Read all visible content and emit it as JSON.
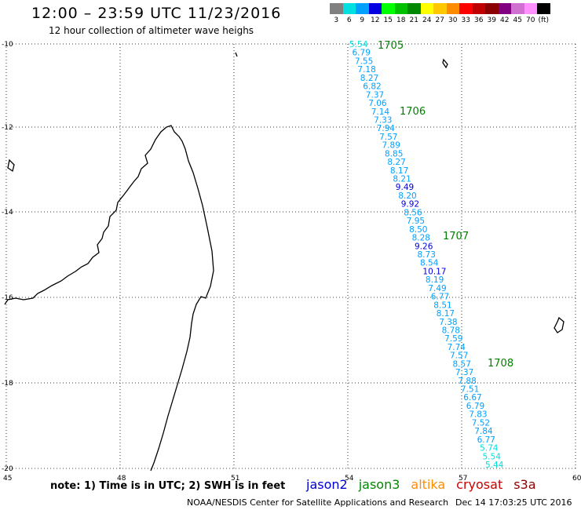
{
  "title": "12:00 – 23:59 UTC 11/23/2016",
  "subtitle": "12 hour collection of altimeter wave heighs",
  "legend": {
    "unit": "(ft)",
    "bins": [
      {
        "label": "3",
        "color": "#808080"
      },
      {
        "label": "6",
        "color": "#00e0e0"
      },
      {
        "label": "9",
        "color": "#00a0ff"
      },
      {
        "label": "12",
        "color": "#0000e0"
      },
      {
        "label": "15",
        "color": "#00ff00"
      },
      {
        "label": "18",
        "color": "#00c000"
      },
      {
        "label": "21",
        "color": "#008800"
      },
      {
        "label": "24",
        "color": "#ffff00"
      },
      {
        "label": "27",
        "color": "#ffc800"
      },
      {
        "label": "30",
        "color": "#ff8c00"
      },
      {
        "label": "33",
        "color": "#ff0000"
      },
      {
        "label": "36",
        "color": "#c00000"
      },
      {
        "label": "39",
        "color": "#8b0000"
      },
      {
        "label": "42",
        "color": "#800080"
      },
      {
        "label": "45",
        "color": "#d070d0"
      },
      {
        "label": "70",
        "color": "#ff90ff"
      },
      {
        "label": "(ft)",
        "color": "#000000"
      }
    ]
  },
  "axes": {
    "lon_ticks": [
      "45",
      "48",
      "51",
      "54",
      "57",
      "60"
    ],
    "lat_ticks": [
      "-10",
      "-12",
      "-14",
      "-16",
      "-18",
      "-20"
    ]
  },
  "pass_labels": [
    "1705",
    "1706",
    "1707",
    "1708"
  ],
  "wave_heights": [
    "5.54",
    "6.79",
    "7.55",
    "7.18",
    "8.27",
    "6.82",
    "7.37",
    "7.06",
    "7.14",
    "7.33",
    "7.94",
    "7.57",
    "7.89",
    "8.85",
    "8.27",
    "8.17",
    "8.21",
    "9.49",
    "8.20",
    "9.92",
    "8.56",
    "7.95",
    "8.50",
    "8.28",
    "9.26",
    "8.73",
    "8.54",
    "10.17",
    "8.19",
    "7.49",
    "6.77",
    "8.51",
    "8.17",
    "7.38",
    "8.78",
    "7.59",
    "7.74",
    "7.57",
    "8.57",
    "7.37",
    "7.88",
    "7.51",
    "6.67",
    "6.79",
    "7.83",
    "7.52",
    "7.84",
    "6.77",
    "5.74",
    "5.54",
    "5.44"
  ],
  "footer": {
    "note": "note: 1) Time is in UTC; 2) SWH is in feet",
    "satellites": [
      {
        "name": "jason2",
        "color": "#0000cc"
      },
      {
        "name": "jason3",
        "color": "#008800"
      },
      {
        "name": "altika",
        "color": "#ff8c00"
      },
      {
        "name": "cryosat",
        "color": "#cc0000"
      },
      {
        "name": "s3a",
        "color": "#8b0000"
      }
    ],
    "credit": "NOAA/NESDIS Center for Satellite Applications and Research",
    "timestamp": "Dec 14 17:03:25 UTC 2016"
  }
}
